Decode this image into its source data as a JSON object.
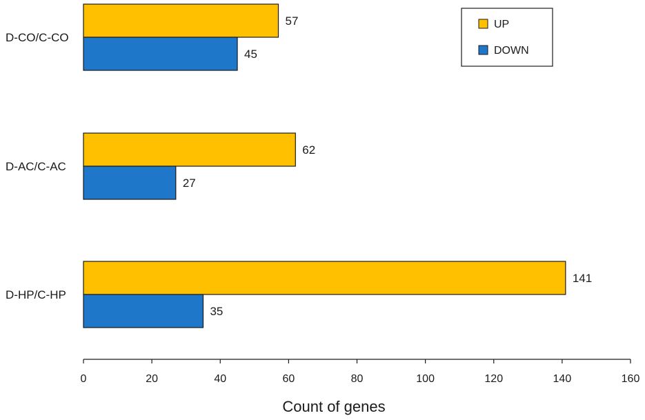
{
  "chart_data": {
    "type": "bar",
    "orientation": "horizontal",
    "title": "",
    "xlabel": "Count of genes",
    "ylabel": "",
    "xlim": [
      0,
      160
    ],
    "xticks": [
      0,
      20,
      40,
      60,
      80,
      100,
      120,
      140,
      160
    ],
    "grid": false,
    "legend_position": "top-right",
    "categories": [
      "D-CO/C-CO",
      "D-AC/C-AC",
      "D-HP/C-HP"
    ],
    "series": [
      {
        "name": "UP",
        "color": "#FFC000",
        "values": [
          57,
          62,
          141
        ]
      },
      {
        "name": "DOWN",
        "color": "#1F77C9",
        "values": [
          45,
          27,
          35
        ]
      }
    ]
  }
}
